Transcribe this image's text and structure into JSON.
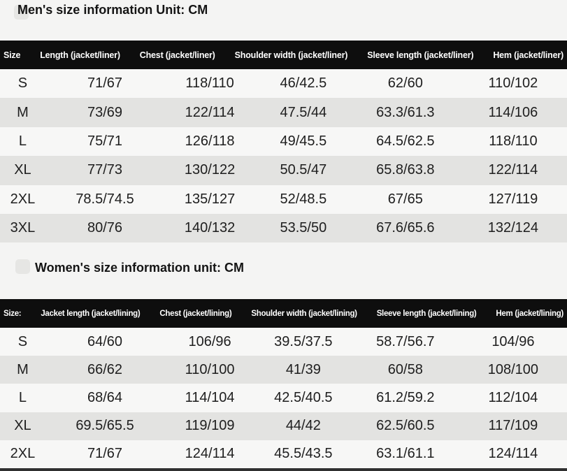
{
  "colors": {
    "page_bg": "#f4f4f3",
    "header_bg": "#0e0e0e",
    "header_text": "#ffffff",
    "row_plain": "#f7f7f6",
    "row_shade": "#e3e3e1",
    "bullet": "#e6e6e4",
    "strip": "#303030",
    "body_text": "#1e1e1e"
  },
  "men": {
    "title": "Men's size information Unit: CM",
    "header": [
      "Size",
      "Length (jacket/liner)",
      "Chest (jacket/liner)",
      "Shoulder width (jacket/liner)",
      "Sleeve length (jacket/liner)",
      "Hem (jacket/liner)"
    ],
    "rows": [
      [
        "S",
        "71/67",
        "118/110",
        "46/42.5",
        "62/60",
        "110/102"
      ],
      [
        "M",
        "73/69",
        "122/114",
        "47.5/44",
        "63.3/61.3",
        "114/106"
      ],
      [
        "L",
        "75/71",
        "126/118",
        "49/45.5",
        "64.5/62.5",
        "118/110"
      ],
      [
        "XL",
        "77/73",
        "130/122",
        "50.5/47",
        "65.8/63.8",
        "122/114"
      ],
      [
        "2XL",
        "78.5/74.5",
        "135/127",
        "52/48.5",
        "67/65",
        "127/119"
      ],
      [
        "3XL",
        "80/76",
        "140/132",
        "53.5/50",
        "67.6/65.6",
        "132/124"
      ]
    ]
  },
  "women": {
    "title": "Women's size information unit: CM",
    "header": [
      "Size:",
      "Jacket length (jacket/lining)",
      "Chest (jacket/lining)",
      "Shoulder width (jacket/lining)",
      "Sleeve length (jacket/lining)",
      "Hem (jacket/lining)"
    ],
    "rows": [
      [
        "S",
        "64/60",
        "106/96",
        "39.5/37.5",
        "58.7/56.7",
        "104/96"
      ],
      [
        "M",
        "66/62",
        "110/100",
        "41/39",
        "60/58",
        "108/100"
      ],
      [
        "L",
        "68/64",
        "114/104",
        "42.5/40.5",
        "61.2/59.2",
        "112/104"
      ],
      [
        "XL",
        "69.5/65.5",
        "119/109",
        "44/42",
        "62.5/60.5",
        "117/109"
      ],
      [
        "2XL",
        "71/67",
        "124/114",
        "45.5/43.5",
        "63.1/61.1",
        "124/114"
      ]
    ]
  }
}
